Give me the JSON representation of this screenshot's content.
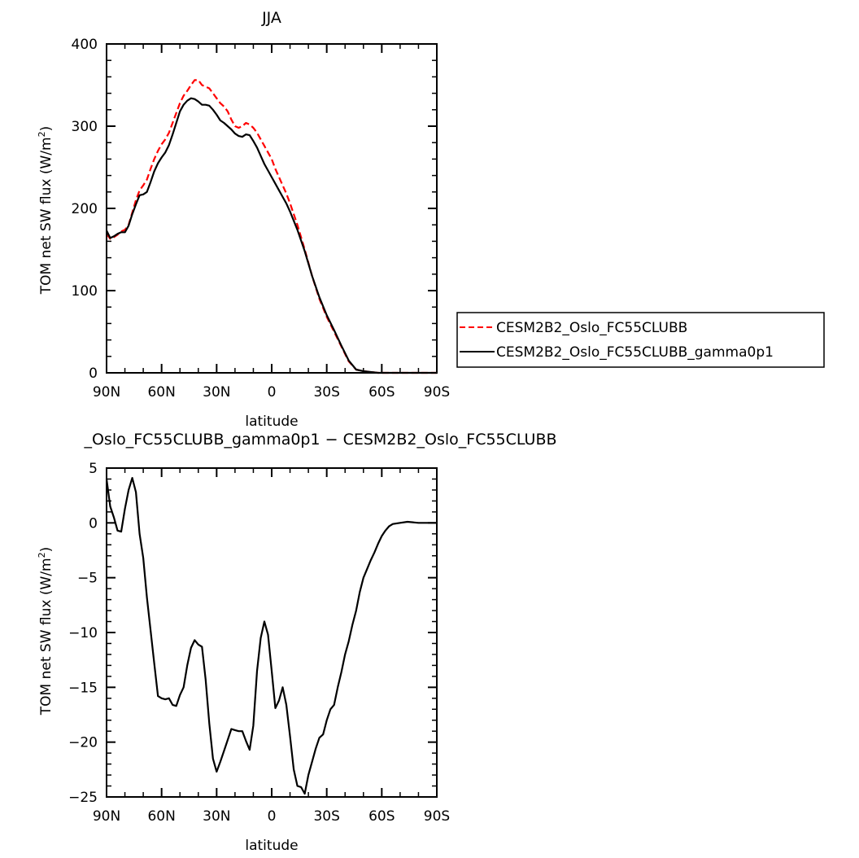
{
  "chart_data": [
    {
      "type": "line",
      "title": "JJA",
      "xlabel": "latitude",
      "ylabel": "TOM net SW flux (W/m",
      "ylabel_sup": "2",
      "ylabel_close": ")",
      "xlim": [
        90,
        -90
      ],
      "ylim": [
        0,
        400
      ],
      "xticks": [
        90,
        60,
        30,
        0,
        -30,
        -60,
        -90
      ],
      "xtick_labels": [
        "90N",
        "60N",
        "30N",
        "0",
        "30S",
        "60S",
        "90S"
      ],
      "yticks": [
        0,
        100,
        200,
        300,
        400
      ],
      "ytick_labels": [
        "0",
        "100",
        "200",
        "300",
        "400"
      ],
      "legend_position": "right",
      "series": [
        {
          "name": "CESM2B2_Oslo_FC55CLUBB",
          "color": "#ff0000",
          "dash": "dashed",
          "x": [
            90,
            88,
            86,
            84,
            82,
            80,
            78,
            76,
            74,
            72,
            70,
            68,
            66,
            64,
            62,
            60,
            58,
            56,
            54,
            52,
            50,
            48,
            46,
            44,
            42,
            40,
            38,
            36,
            34,
            32,
            30,
            28,
            26,
            24,
            22,
            20,
            18,
            16,
            14,
            12,
            10,
            8,
            6,
            4,
            2,
            0,
            -2,
            -4,
            -6,
            -8,
            -10,
            -14,
            -18,
            -22,
            -26,
            -30,
            -34,
            -38,
            -42,
            -46,
            -50,
            -54,
            -58,
            -62,
            -66,
            -68,
            -70,
            -72,
            -76,
            -80,
            -86,
            -90
          ],
          "values": [
            169,
            163,
            165,
            168,
            172,
            174,
            180,
            195,
            210,
            222,
            228,
            235,
            248,
            260,
            270,
            278,
            284,
            292,
            304,
            316,
            328,
            337,
            343,
            350,
            356,
            356,
            350,
            348,
            346,
            340,
            334,
            328,
            324,
            318,
            308,
            300,
            298,
            300,
            304,
            302,
            298,
            292,
            284,
            276,
            268,
            260,
            248,
            238,
            228,
            218,
            206,
            180,
            150,
            118,
            90,
            68,
            50,
            32,
            14,
            4,
            2,
            1,
            0,
            0,
            0,
            0,
            0,
            0,
            0,
            0,
            0,
            0
          ]
        },
        {
          "name": "CESM2B2_Oslo_FC55CLUBB_gamma0p1",
          "color": "#000000",
          "dash": "solid",
          "x": [
            90,
            88,
            86,
            84,
            82,
            80,
            78,
            76,
            74,
            72,
            70,
            68,
            66,
            64,
            62,
            60,
            58,
            56,
            54,
            52,
            50,
            48,
            46,
            44,
            42,
            40,
            38,
            36,
            34,
            32,
            30,
            28,
            26,
            24,
            22,
            20,
            18,
            16,
            14,
            12,
            10,
            8,
            6,
            4,
            2,
            0,
            -2,
            -4,
            -6,
            -8,
            -10,
            -14,
            -18,
            -22,
            -26,
            -30,
            -34,
            -38,
            -42,
            -46,
            -50,
            -54,
            -58,
            -62,
            -66,
            -68,
            -70,
            -72,
            -76,
            -80,
            -86,
            -90
          ],
          "values": [
            173,
            164,
            166,
            169,
            171,
            171,
            179,
            193,
            205,
            216,
            217,
            220,
            232,
            245,
            255,
            262,
            268,
            277,
            290,
            304,
            318,
            326,
            331,
            334,
            333,
            330,
            326,
            326,
            325,
            320,
            314,
            307,
            304,
            300,
            296,
            291,
            288,
            287,
            290,
            289,
            282,
            274,
            264,
            254,
            246,
            238,
            230,
            222,
            214,
            206,
            196,
            174,
            148,
            118,
            92,
            70,
            52,
            33,
            15,
            4,
            2,
            1,
            0,
            0,
            0,
            0,
            0,
            0,
            0,
            0,
            0,
            0
          ]
        }
      ]
    },
    {
      "type": "line",
      "title": "_Oslo_FC55CLUBB_gamma0p1 − CESM2B2_Oslo_FC55CLUBB",
      "xlabel": "latitude",
      "ylabel": "TOM net SW flux (W/m",
      "ylabel_sup": "2",
      "ylabel_close": ")",
      "xlim": [
        90,
        -90
      ],
      "ylim": [
        -25,
        5
      ],
      "xticks": [
        90,
        60,
        30,
        0,
        -30,
        -60,
        -90
      ],
      "xtick_labels": [
        "90N",
        "60N",
        "30N",
        "0",
        "30S",
        "60S",
        "90S"
      ],
      "yticks": [
        -25,
        -20,
        -15,
        -10,
        -5,
        0,
        5
      ],
      "ytick_labels": [
        "−25",
        "−20",
        "−15",
        "−10",
        "−5",
        "0",
        "5"
      ],
      "series": [
        {
          "color": "#000000",
          "dash": "solid",
          "x": [
            90,
            88,
            86,
            84,
            82,
            80,
            78,
            76,
            74,
            72,
            70,
            68,
            66,
            64,
            62,
            60,
            58,
            56,
            54,
            52,
            50,
            48,
            46,
            44,
            42,
            40,
            38,
            36,
            34,
            32,
            30,
            28,
            26,
            24,
            22,
            20,
            18,
            16,
            14,
            12,
            10,
            8,
            6,
            4,
            2,
            0,
            -2,
            -4,
            -6,
            -8,
            -10,
            -12,
            -14,
            -16,
            -18,
            -20,
            -22,
            -24,
            -26,
            -28,
            -30,
            -32,
            -34,
            -36,
            -38,
            -40,
            -42,
            -44,
            -46,
            -48,
            -50,
            -52,
            -54,
            -56,
            -58,
            -60,
            -62,
            -64,
            -66,
            -70,
            -74,
            -80,
            -86,
            -90
          ],
          "values": [
            4.0,
            1.5,
            0.5,
            -0.7,
            -0.8,
            1.3,
            3.0,
            4.1,
            2.8,
            -1.0,
            -3.2,
            -6.8,
            -9.8,
            -12.8,
            -15.8,
            -16.0,
            -16.1,
            -16.0,
            -16.6,
            -16.7,
            -15.7,
            -15.0,
            -13.0,
            -11.4,
            -10.7,
            -11.1,
            -11.3,
            -14.3,
            -18.3,
            -21.5,
            -22.7,
            -21.8,
            -20.8,
            -19.8,
            -18.8,
            -18.9,
            -19.0,
            -19.0,
            -19.9,
            -20.7,
            -18.5,
            -13.5,
            -10.5,
            -9.0,
            -10.2,
            -13.5,
            -16.9,
            -16.2,
            -15.0,
            -16.6,
            -19.5,
            -22.5,
            -24.0,
            -24.1,
            -24.7,
            -23.0,
            -21.8,
            -20.6,
            -19.6,
            -19.3,
            -18.0,
            -17.0,
            -16.6,
            -15.0,
            -13.6,
            -12.0,
            -10.8,
            -9.3,
            -8.0,
            -6.3,
            -5.0,
            -4.2,
            -3.4,
            -2.7,
            -1.9,
            -1.2,
            -0.7,
            -0.3,
            -0.1,
            0.0,
            0.1,
            0.0,
            0.0,
            0.0
          ]
        }
      ]
    }
  ]
}
